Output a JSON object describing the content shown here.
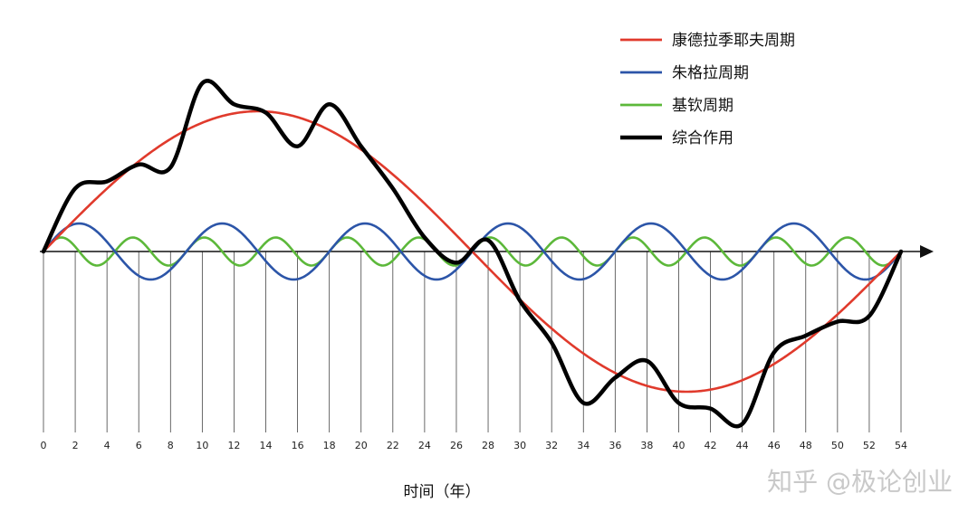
{
  "chart_data": {
    "type": "line",
    "title": "",
    "xlabel": "时间（年）",
    "ylabel": "",
    "xlim": [
      0,
      54
    ],
    "ylim": [
      -1.2,
      1.2
    ],
    "x_ticks": [
      "0",
      "2",
      "4",
      "6",
      "8",
      "10",
      "12",
      "14",
      "16",
      "18",
      "20",
      "22",
      "24",
      "26",
      "28",
      "30",
      "32",
      "34",
      "36",
      "38",
      "40",
      "42",
      "44",
      "46",
      "48",
      "50",
      "52",
      "54"
    ],
    "grid": "vertical lines at every tick",
    "legend_position": "top-right",
    "series": [
      {
        "name": "康德拉季耶夫周期",
        "color": "#e03a2c",
        "period_years": 54,
        "amplitude": 1.0
      },
      {
        "name": "朱格拉周期",
        "color": "#2c55a8",
        "period_years": 9,
        "amplitude": 0.2
      },
      {
        "name": "基钦周期",
        "color": "#5cb83a",
        "period_years": 4.5,
        "amplitude": 0.1
      },
      {
        "name": "综合作用",
        "color": "#000000",
        "combined": true,
        "x": [
          0,
          2,
          4,
          6,
          8,
          10,
          12,
          14,
          16,
          18,
          20,
          22,
          24,
          26,
          28,
          30,
          32,
          34,
          36,
          38,
          40,
          42,
          44,
          46,
          48,
          50,
          52,
          54
        ],
        "y": [
          0,
          0.45,
          0.5,
          0.62,
          0.6,
          1.2,
          1.05,
          0.99,
          0.75,
          1.05,
          0.75,
          0.45,
          0.1,
          -0.08,
          0.08,
          -0.35,
          -0.65,
          -1.08,
          -0.9,
          -0.78,
          -1.08,
          -1.12,
          -1.23,
          -0.72,
          -0.6,
          -0.5,
          -0.46,
          0
        ]
      }
    ]
  },
  "watermark": "知乎 @极论创业"
}
